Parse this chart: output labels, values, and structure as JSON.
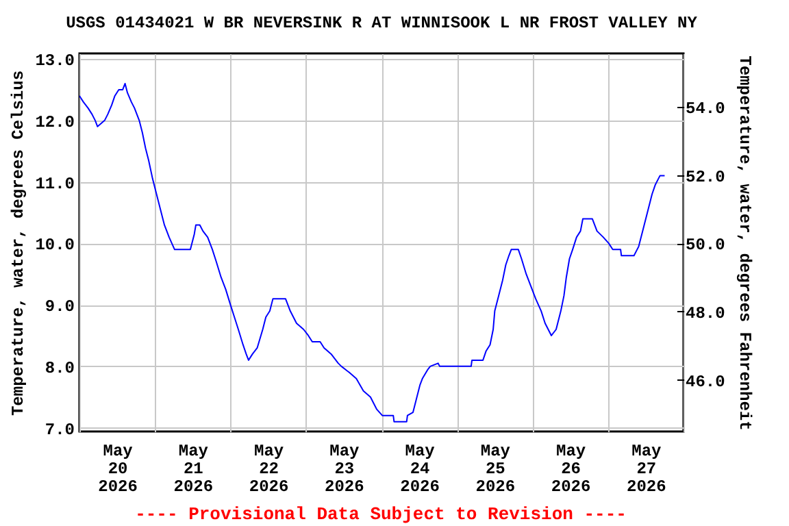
{
  "chart_data": {
    "type": "line",
    "title": "USGS 01434021 W BR NEVERSINK R AT WINNISOOK L NR FROST VALLEY NY",
    "ylabel": "Temperature, water, degrees Celsius",
    "y2label": "Temperature, water, degrees Fahrenheit",
    "annotations": [
      "---- Provisional Data Subject to Revision ----"
    ],
    "grid": true,
    "xlim": [
      "2026-05-20T00:00",
      "2026-05-28T00:00"
    ],
    "xticks": [
      {
        "value": "2026-05-20T00:00",
        "label": null
      },
      {
        "value": "2026-05-20T12:00",
        "label": "May 20 2026"
      },
      {
        "value": "2026-05-21T00:00",
        "label": null
      },
      {
        "value": "2026-05-21T12:00",
        "label": "May 21 2026"
      },
      {
        "value": "2026-05-22T00:00",
        "label": null
      },
      {
        "value": "2026-05-22T12:00",
        "label": "May 22 2026"
      },
      {
        "value": "2026-05-23T00:00",
        "label": null
      },
      {
        "value": "2026-05-23T12:00",
        "label": "May 23 2026"
      },
      {
        "value": "2026-05-24T00:00",
        "label": null
      },
      {
        "value": "2026-05-24T12:00",
        "label": "May 24 2026"
      },
      {
        "value": "2026-05-25T00:00",
        "label": null
      },
      {
        "value": "2026-05-25T12:00",
        "label": "May 25 2026"
      },
      {
        "value": "2026-05-26T00:00",
        "label": null
      },
      {
        "value": "2026-05-26T12:00",
        "label": "May 26 2026"
      },
      {
        "value": "2026-05-27T00:00",
        "label": null
      },
      {
        "value": "2026-05-27T12:00",
        "label": "May 27 2026"
      },
      {
        "value": "2026-05-28T00:00",
        "label": null
      }
    ],
    "ylim": [
      6.94,
      13.09
    ],
    "yticks": [
      {
        "value": 7,
        "label": "7.0"
      },
      {
        "value": 8,
        "label": "8.0"
      },
      {
        "value": 9,
        "label": "9.0"
      },
      {
        "value": 10,
        "label": "10.0"
      },
      {
        "value": 11,
        "label": "11.0"
      },
      {
        "value": 12,
        "label": "12.0"
      },
      {
        "value": 13,
        "label": "13.0"
      }
    ],
    "y2lim": [
      44.49,
      55.56
    ],
    "y2ticks": [
      {
        "value": 46,
        "label": "46.0"
      },
      {
        "value": 48,
        "label": "48.0"
      },
      {
        "value": 50,
        "label": "50.0"
      },
      {
        "value": 52,
        "label": "52.0"
      },
      {
        "value": 54,
        "label": "54.0"
      }
    ],
    "x": [
      "2026-05-20T00:00",
      "2026-05-20T01:15",
      "2026-05-20T02:45",
      "2026-05-20T04:00",
      "2026-05-20T05:00",
      "2026-05-20T05:45",
      "2026-05-20T08:00",
      "2026-05-20T09:00",
      "2026-05-20T10:15",
      "2026-05-20T11:15",
      "2026-05-20T12:30",
      "2026-05-20T13:45",
      "2026-05-20T14:30",
      "2026-05-20T15:15",
      "2026-05-20T16:30",
      "2026-05-20T17:30",
      "2026-05-20T19:00",
      "2026-05-20T20:00",
      "2026-05-20T21:00",
      "2026-05-20T22:00",
      "2026-05-20T23:15",
      "2026-05-21T00:30",
      "2026-05-21T01:30",
      "2026-05-21T03:00",
      "2026-05-21T04:30",
      "2026-05-21T06:15",
      "2026-05-21T11:15",
      "2026-05-21T12:30",
      "2026-05-21T13:00",
      "2026-05-21T14:15",
      "2026-05-21T15:15",
      "2026-05-21T16:45",
      "2026-05-21T18:15",
      "2026-05-21T19:30",
      "2026-05-21T21:00",
      "2026-05-21T22:30",
      "2026-05-22T00:00",
      "2026-05-22T01:15",
      "2026-05-22T02:30",
      "2026-05-22T04:00",
      "2026-05-22T05:00",
      "2026-05-22T05:45",
      "2026-05-22T07:00",
      "2026-05-22T08:30",
      "2026-05-22T10:15",
      "2026-05-22T11:15",
      "2026-05-22T12:30",
      "2026-05-22T13:30",
      "2026-05-22T17:30",
      "2026-05-22T19:00",
      "2026-05-22T21:00",
      "2026-05-22T23:15",
      "2026-05-23T00:45",
      "2026-05-23T02:00",
      "2026-05-23T04:30",
      "2026-05-23T05:45",
      "2026-05-23T08:00",
      "2026-05-23T10:15",
      "2026-05-23T11:15",
      "2026-05-23T13:45",
      "2026-05-23T16:00",
      "2026-05-23T18:15",
      "2026-05-23T20:30",
      "2026-05-23T22:30",
      "2026-05-24T00:15",
      "2026-05-24T03:45",
      "2026-05-24T04:00",
      "2026-05-24T08:00",
      "2026-05-24T08:15",
      "2026-05-24T10:00",
      "2026-05-24T11:00",
      "2026-05-24T12:15",
      "2026-05-24T13:00",
      "2026-05-24T14:45",
      "2026-05-24T15:30",
      "2026-05-24T18:00",
      "2026-05-24T18:30",
      "2026-05-25T04:30",
      "2026-05-25T04:45",
      "2026-05-25T08:15",
      "2026-05-25T09:15",
      "2026-05-25T10:30",
      "2026-05-25T11:30",
      "2026-05-25T12:00",
      "2026-05-25T13:15",
      "2026-05-25T14:30",
      "2026-05-25T15:30",
      "2026-05-25T16:30",
      "2026-05-25T17:15",
      "2026-05-25T19:30",
      "2026-05-25T20:30",
      "2026-05-25T22:00",
      "2026-05-25T23:30",
      "2026-05-26T01:00",
      "2026-05-26T02:45",
      "2026-05-26T04:00",
      "2026-05-26T06:00",
      "2026-05-26T07:30",
      "2026-05-26T09:00",
      "2026-05-26T10:00",
      "2026-05-26T10:45",
      "2026-05-26T11:45",
      "2026-05-26T12:45",
      "2026-05-26T14:00",
      "2026-05-26T15:15",
      "2026-05-26T16:00",
      "2026-05-26T19:00",
      "2026-05-26T20:30",
      "2026-05-26T22:30",
      "2026-05-27T00:15",
      "2026-05-27T01:30",
      "2026-05-27T04:00",
      "2026-05-27T04:15",
      "2026-05-27T08:15",
      "2026-05-27T09:45",
      "2026-05-27T11:00",
      "2026-05-27T12:30",
      "2026-05-27T14:00",
      "2026-05-27T15:00",
      "2026-05-27T16:30",
      "2026-05-27T18:00"
    ],
    "series": [
      {
        "color": "#0000ff",
        "values": [
          12.4,
          12.3,
          12.2,
          12.1,
          12.0,
          11.9,
          12.0,
          12.1,
          12.25,
          12.4,
          12.5,
          12.5,
          12.6,
          12.45,
          12.3,
          12.2,
          12.0,
          11.8,
          11.55,
          11.35,
          11.05,
          10.8,
          10.6,
          10.3,
          10.1,
          9.9,
          9.9,
          10.15,
          10.3,
          10.3,
          10.2,
          10.1,
          9.9,
          9.7,
          9.45,
          9.25,
          9.0,
          8.8,
          8.6,
          8.35,
          8.2,
          8.1,
          8.2,
          8.3,
          8.6,
          8.8,
          8.9,
          9.1,
          9.1,
          8.9,
          8.7,
          8.6,
          8.5,
          8.4,
          8.4,
          8.3,
          8.2,
          8.05,
          8.0,
          7.9,
          7.8,
          7.6,
          7.5,
          7.3,
          7.2,
          7.2,
          7.1,
          7.1,
          7.2,
          7.25,
          7.45,
          7.7,
          7.8,
          7.95,
          8.0,
          8.05,
          8.0,
          8.0,
          8.1,
          8.1,
          8.25,
          8.35,
          8.6,
          8.9,
          9.15,
          9.4,
          9.65,
          9.8,
          9.9,
          9.9,
          9.75,
          9.5,
          9.3,
          9.1,
          8.9,
          8.7,
          8.5,
          8.6,
          8.9,
          9.15,
          9.45,
          9.75,
          9.9,
          10.1,
          10.2,
          10.4,
          10.4,
          10.2,
          10.1,
          10.0,
          9.9,
          9.9,
          9.8,
          9.8,
          9.95,
          10.2,
          10.5,
          10.8,
          10.95,
          11.1,
          11.1
        ]
      }
    ]
  }
}
